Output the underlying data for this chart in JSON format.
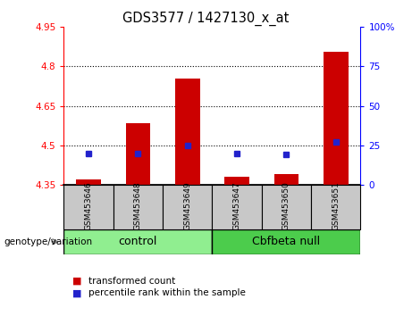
{
  "title": "GDS3577 / 1427130_x_at",
  "samples": [
    "GSM453646",
    "GSM453648",
    "GSM453649",
    "GSM453647",
    "GSM453650",
    "GSM453651"
  ],
  "transformed_counts": [
    4.37,
    4.585,
    4.755,
    4.38,
    4.39,
    4.855
  ],
  "percentile_ranks": [
    20,
    20,
    25,
    20,
    19,
    27
  ],
  "ylim_left": [
    4.35,
    4.95
  ],
  "ylim_right": [
    0,
    100
  ],
  "yticks_left": [
    4.35,
    4.5,
    4.65,
    4.8,
    4.95
  ],
  "yticks_right": [
    0,
    25,
    50,
    75,
    100
  ],
  "ytick_labels_left": [
    "4.35",
    "4.5",
    "4.65",
    "4.8",
    "4.95"
  ],
  "ytick_labels_right": [
    "0",
    "25",
    "50",
    "75",
    "100%"
  ],
  "hlines": [
    4.5,
    4.65,
    4.8
  ],
  "bar_color": "#cc0000",
  "marker_color": "#2222cc",
  "bar_width": 0.5,
  "bar_bottom": 4.35,
  "legend_items": [
    "transformed count",
    "percentile rank within the sample"
  ],
  "legend_colors": [
    "#cc0000",
    "#2222cc"
  ],
  "genotype_label": "genotype/variation",
  "xlabel_area_color": "#c8c8c8",
  "group_colors": [
    "#90ee90",
    "#4ccc4c"
  ],
  "control_label": "control",
  "null_label": "Cbfbeta null"
}
